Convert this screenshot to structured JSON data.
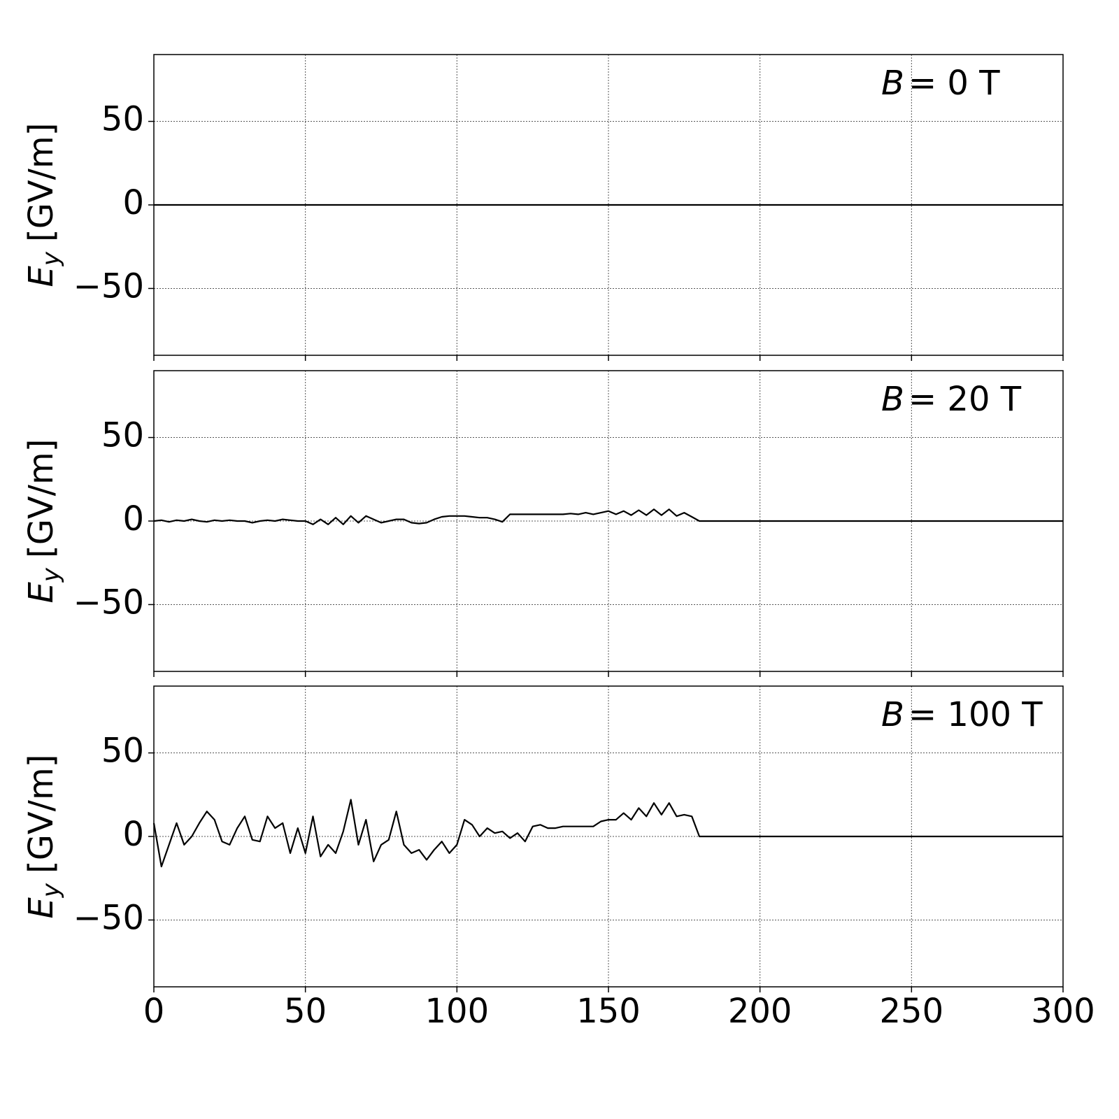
{
  "chart_data": [
    {
      "type": "line",
      "annotation": {
        "symbol": "B",
        "text": "= 0 T"
      },
      "ylabel": {
        "symbol": "E",
        "subscript": "y",
        "unit": "[GV/m]"
      },
      "xlim": [
        0,
        300
      ],
      "ylim": [
        -90,
        90
      ],
      "xticks": [
        0,
        50,
        100,
        150,
        200,
        250,
        300
      ],
      "yticks": [
        {
          "value": -50,
          "label": "−50"
        },
        0,
        50
      ],
      "grid": true,
      "x": [
        0,
        2.5,
        5,
        7.5,
        10,
        12.5,
        15,
        17.5,
        20,
        22.5,
        25,
        27.5,
        30,
        32.5,
        35,
        37.5,
        40,
        42.5,
        45,
        47.5,
        50,
        52.5,
        55,
        57.5,
        60,
        62.5,
        65,
        67.5,
        70,
        72.5,
        75,
        77.5,
        80,
        82.5,
        85,
        87.5,
        90,
        92.5,
        95,
        97.5,
        100,
        102.5,
        105,
        107.5,
        110,
        112.5,
        115,
        117.5,
        120,
        122.5,
        125,
        127.5,
        130,
        132.5,
        135,
        137.5,
        140,
        142.5,
        145,
        147.5,
        150,
        152.5,
        155,
        157.5,
        160,
        162.5,
        165,
        167.5,
        170,
        172.5,
        175,
        177.5,
        180,
        300
      ],
      "series": [
        {
          "color": "#000000",
          "values": [
            0,
            0,
            0,
            0,
            0,
            0,
            0,
            0,
            0,
            0,
            0,
            0,
            0,
            0,
            0,
            0,
            0,
            0,
            0,
            0,
            0,
            0,
            0,
            0,
            0,
            0,
            0,
            0,
            0,
            0,
            0,
            0,
            0,
            0,
            0,
            0,
            0,
            0,
            0,
            0,
            0,
            0,
            0,
            0,
            0,
            0,
            0,
            0,
            0,
            0,
            0,
            0,
            0,
            0,
            0,
            0,
            0,
            0,
            0,
            0,
            0,
            0,
            0,
            0,
            0,
            0,
            0,
            0,
            0,
            0,
            0,
            0,
            0,
            0
          ]
        }
      ]
    },
    {
      "type": "line",
      "annotation": {
        "symbol": "B",
        "text": "= 20 T"
      },
      "ylabel": {
        "symbol": "E",
        "subscript": "y",
        "unit": "[GV/m]"
      },
      "xlim": [
        0,
        300
      ],
      "ylim": [
        -90,
        90
      ],
      "xticks": [
        0,
        50,
        100,
        150,
        200,
        250,
        300
      ],
      "yticks": [
        {
          "value": -50,
          "label": "−50"
        },
        0,
        50
      ],
      "grid": true,
      "x": [
        0,
        2.5,
        5,
        7.5,
        10,
        12.5,
        15,
        17.5,
        20,
        22.5,
        25,
        27.5,
        30,
        32.5,
        35,
        37.5,
        40,
        42.5,
        45,
        47.5,
        50,
        52.5,
        55,
        57.5,
        60,
        62.5,
        65,
        67.5,
        70,
        72.5,
        75,
        77.5,
        80,
        82.5,
        85,
        87.5,
        90,
        92.5,
        95,
        97.5,
        100,
        102.5,
        105,
        107.5,
        110,
        112.5,
        115,
        117.5,
        120,
        122.5,
        125,
        127.5,
        130,
        132.5,
        135,
        137.5,
        140,
        142.5,
        145,
        147.5,
        150,
        152.5,
        155,
        157.5,
        160,
        162.5,
        165,
        167.5,
        170,
        172.5,
        175,
        177.5,
        180,
        300
      ],
      "series": [
        {
          "color": "#000000",
          "values": [
            0,
            0.5,
            -0.5,
            0.5,
            0,
            1,
            0,
            -0.5,
            0.5,
            0,
            0.5,
            0,
            0,
            -1,
            0,
            0.5,
            0,
            1,
            0.5,
            0,
            0,
            -2,
            1,
            -2,
            2,
            -2,
            3,
            -1,
            3,
            1,
            -1,
            0,
            1,
            1,
            -1,
            -1.5,
            -1,
            1,
            2.5,
            3,
            3,
            3,
            2.5,
            2,
            2,
            1,
            -0.5,
            4,
            4,
            4,
            4,
            4,
            4,
            4,
            4,
            4.5,
            4,
            5,
            4,
            5,
            6,
            4,
            6,
            3.5,
            6.5,
            3.5,
            7,
            3.5,
            7,
            3,
            5,
            2.5,
            0,
            0
          ]
        }
      ]
    },
    {
      "type": "line",
      "annotation": {
        "symbol": "B",
        "text": "= 100 T"
      },
      "ylabel": {
        "symbol": "E",
        "subscript": "y",
        "unit": "[GV/m]"
      },
      "xlim": [
        0,
        300
      ],
      "ylim": [
        -90,
        90
      ],
      "xticks": [
        0,
        50,
        100,
        150,
        200,
        250,
        300
      ],
      "yticks": [
        {
          "value": -50,
          "label": "−50"
        },
        0,
        50
      ],
      "grid": true,
      "x": [
        0,
        2.5,
        5,
        7.5,
        10,
        12.5,
        15,
        17.5,
        20,
        22.5,
        25,
        27.5,
        30,
        32.5,
        35,
        37.5,
        40,
        42.5,
        45,
        47.5,
        50,
        52.5,
        55,
        57.5,
        60,
        62.5,
        65,
        67.5,
        70,
        72.5,
        75,
        77.5,
        80,
        82.5,
        85,
        87.5,
        90,
        92.5,
        95,
        97.5,
        100,
        102.5,
        105,
        107.5,
        110,
        112.5,
        115,
        117.5,
        120,
        122.5,
        125,
        127.5,
        130,
        132.5,
        135,
        137.5,
        140,
        142.5,
        145,
        147.5,
        150,
        152.5,
        155,
        157.5,
        160,
        162.5,
        165,
        167.5,
        170,
        172.5,
        175,
        177.5,
        180,
        300
      ],
      "series": [
        {
          "color": "#000000",
          "values": [
            8,
            -18,
            -5,
            8,
            -5,
            0,
            8,
            15,
            10,
            -3,
            -5,
            5,
            12,
            -2,
            -3,
            12,
            5,
            8,
            -10,
            5,
            -10,
            12,
            -12,
            -5,
            -10,
            3,
            22,
            -5,
            10,
            -15,
            -5,
            -2,
            15,
            -5,
            -10,
            -8,
            -14,
            -8,
            -3,
            -10,
            -5,
            10,
            7,
            0,
            5,
            2,
            3,
            -1,
            2,
            -3,
            6,
            7,
            5,
            5,
            6,
            6,
            6,
            6,
            6,
            9,
            10,
            10,
            14,
            10,
            17,
            12,
            20,
            13,
            20,
            12,
            13,
            12,
            0,
            0
          ]
        }
      ]
    }
  ]
}
